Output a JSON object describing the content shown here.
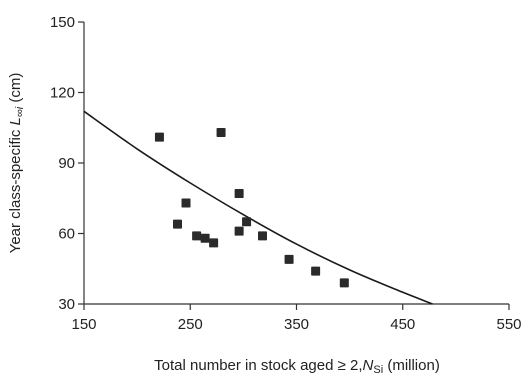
{
  "chart_data": {
    "type": "scatter",
    "title": "",
    "ylabel": {
      "prefix": "Year class-specific ",
      "symbol": "L",
      "subscript": "∞i",
      "unit": " (cm)"
    },
    "xlabel": {
      "prefix": "Total number in stock aged ≥ 2,",
      "symbol": "N",
      "subscript": "Si",
      "unit": " (million)"
    },
    "xlim": [
      150,
      550
    ],
    "ylim": [
      30,
      150
    ],
    "x_ticks": [
      150,
      250,
      350,
      450,
      550
    ],
    "y_ticks": [
      30,
      60,
      90,
      120,
      150
    ],
    "grid": false,
    "legend": "none",
    "series": [
      {
        "kind": "points",
        "marker": "square",
        "color": "#2a2a2a",
        "points": [
          {
            "x": 221,
            "y": 101
          },
          {
            "x": 279,
            "y": 103
          },
          {
            "x": 296,
            "y": 77
          },
          {
            "x": 246,
            "y": 73
          },
          {
            "x": 238,
            "y": 64
          },
          {
            "x": 303,
            "y": 65
          },
          {
            "x": 296,
            "y": 61
          },
          {
            "x": 256,
            "y": 59
          },
          {
            "x": 264,
            "y": 58
          },
          {
            "x": 318,
            "y": 59
          },
          {
            "x": 272,
            "y": 56
          },
          {
            "x": 343,
            "y": 49
          },
          {
            "x": 368,
            "y": 44
          },
          {
            "x": 395,
            "y": 39
          }
        ]
      },
      {
        "kind": "fit-curve",
        "color": "#1a1a1a",
        "points": [
          {
            "x": 150,
            "y": 112
          },
          {
            "x": 200,
            "y": 96
          },
          {
            "x": 250,
            "y": 81.5
          },
          {
            "x": 300,
            "y": 68
          },
          {
            "x": 350,
            "y": 55.5
          },
          {
            "x": 400,
            "y": 44.5
          },
          {
            "x": 450,
            "y": 35
          },
          {
            "x": 478,
            "y": 30
          }
        ]
      }
    ]
  }
}
